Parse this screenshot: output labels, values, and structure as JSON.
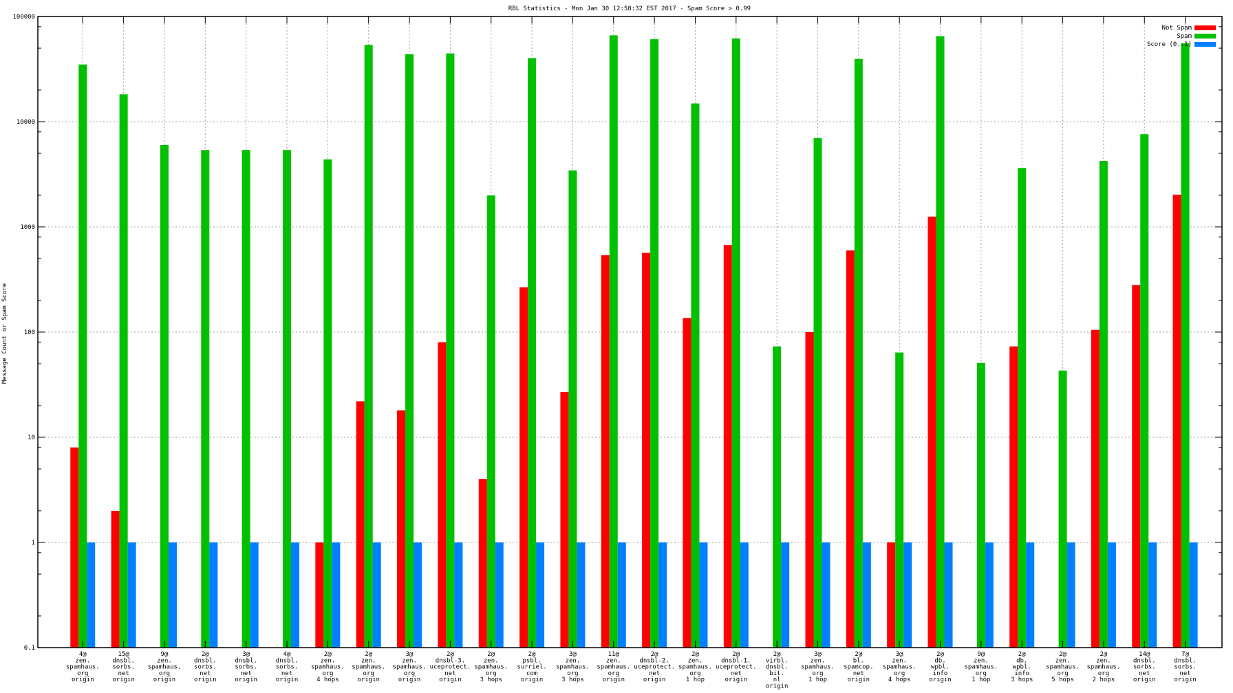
{
  "chart_data": {
    "type": "bar",
    "title": "RBL Statistics - Mon Jan 30 12:58:32 EST 2017 - Spam Score > 0.99",
    "xlabel": "",
    "ylabel": "Message Count or Spam Score",
    "yscale": "log",
    "ylim": [
      0.1,
      100000
    ],
    "yticks": [
      "0.1",
      "1",
      "10",
      "100",
      "1000",
      "10000",
      "100000"
    ],
    "grid": true,
    "legend_position": "top-right",
    "categories": [
      [
        "4@",
        "zen.",
        "spamhaus.",
        "org",
        "origin"
      ],
      [
        "15@",
        "dnsbl.",
        "sorbs.",
        "net",
        "origin"
      ],
      [
        "9@",
        "zen.",
        "spamhaus.",
        "org",
        "origin"
      ],
      [
        "2@",
        "dnsbl.",
        "sorbs.",
        "net",
        "origin"
      ],
      [
        "3@",
        "dnsbl.",
        "sorbs.",
        "net",
        "origin"
      ],
      [
        "4@",
        "dnsbl.",
        "sorbs.",
        "net",
        "origin"
      ],
      [
        "2@",
        "zen.",
        "spamhaus.",
        "org",
        "4 hops"
      ],
      [
        "2@",
        "zen.",
        "spamhaus.",
        "org",
        "origin"
      ],
      [
        "3@",
        "zen.",
        "spamhaus.",
        "org",
        "origin"
      ],
      [
        "2@",
        "dnsbl-3.",
        "uceprotect.",
        "net",
        "origin"
      ],
      [
        "2@",
        "zen.",
        "spamhaus.",
        "org",
        "3 hops"
      ],
      [
        "2@",
        "psbl.",
        "surriel.",
        "com",
        "origin"
      ],
      [
        "3@",
        "zen.",
        "spamhaus.",
        "org",
        "3 hops"
      ],
      [
        "11@",
        "zen.",
        "spamhaus.",
        "org",
        "origin"
      ],
      [
        "2@",
        "dnsbl-2.",
        "uceprotect.",
        "net",
        "origin"
      ],
      [
        "2@",
        "zen.",
        "spamhaus.",
        "org",
        "1 hop"
      ],
      [
        "2@",
        "dnsbl-1.",
        "uceprotect.",
        "net",
        "origin"
      ],
      [
        "2@",
        "virbl.",
        "dnsbl.",
        "bit.",
        "nl",
        "origin"
      ],
      [
        "3@",
        "zen.",
        "spamhaus.",
        "org",
        "1 hop"
      ],
      [
        "2@",
        "bl.",
        "spamcop.",
        "net",
        "origin"
      ],
      [
        "3@",
        "zen.",
        "spamhaus.",
        "org",
        "4 hops"
      ],
      [
        "2@",
        "db.",
        "wpbl.",
        "info",
        "origin"
      ],
      [
        "9@",
        "zen.",
        "spamhaus.",
        "org",
        "1 hop"
      ],
      [
        "2@",
        "db.",
        "wpbl.",
        "info",
        "3 hops"
      ],
      [
        "2@",
        "zen.",
        "spamhaus.",
        "org",
        "5 hops"
      ],
      [
        "2@",
        "zen.",
        "spamhaus.",
        "org",
        "2 hops"
      ],
      [
        "14@",
        "dnsbl.",
        "sorbs.",
        "net",
        "origin"
      ],
      [
        "7@",
        "dnsbl.",
        "sorbs.",
        "net",
        "origin"
      ]
    ],
    "series": [
      {
        "name": "Not Spam",
        "color": "#ff0000",
        "values": [
          8,
          2,
          null,
          null,
          null,
          null,
          1,
          22,
          18,
          80,
          4,
          266,
          27,
          538,
          567,
          136,
          673,
          null,
          100,
          597,
          1,
          1250,
          null,
          73,
          null,
          105,
          280,
          2020
        ]
      },
      {
        "name": "Spam",
        "color": "#00c000",
        "values": [
          35000,
          18200,
          6000,
          5380,
          5380,
          5380,
          4380,
          53800,
          43800,
          44600,
          1990,
          40200,
          3440,
          66200,
          60800,
          14900,
          61800,
          73,
          6970,
          39500,
          64,
          65000,
          51,
          3630,
          43,
          4240,
          7600,
          55700
        ]
      },
      {
        "name": "Score (0..1)",
        "color": "#0080ff",
        "values": [
          1,
          1,
          1,
          1,
          1,
          1,
          1,
          1,
          1,
          1,
          1,
          1,
          1,
          1,
          1,
          1,
          1,
          1,
          1,
          1,
          1,
          1,
          1,
          1,
          1,
          1,
          1,
          1
        ]
      }
    ]
  }
}
